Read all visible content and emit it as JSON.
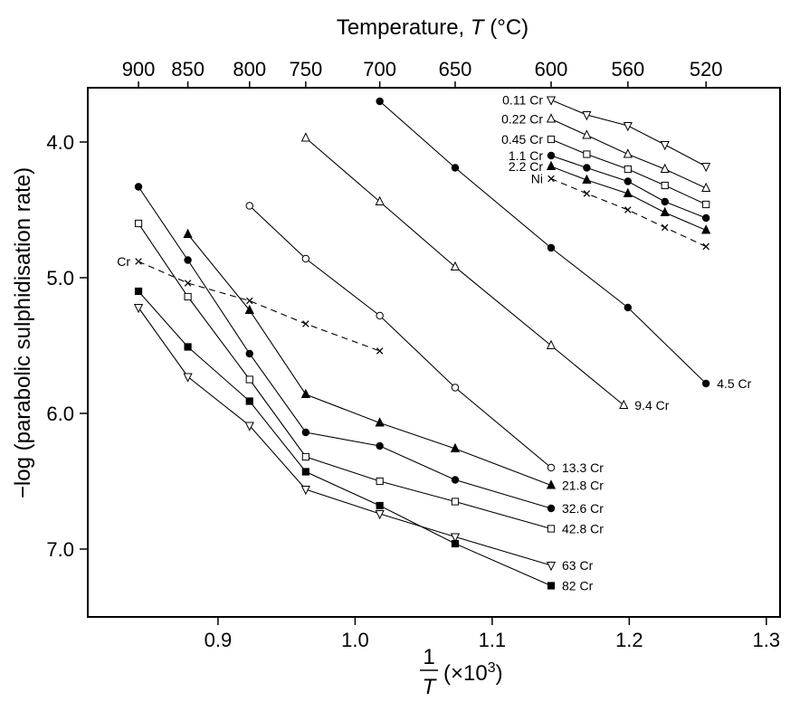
{
  "chart_data": {
    "type": "line",
    "xlabel_num": "1",
    "xlabel_den": "T",
    "xlabel_suffix": "(×10",
    "xlabel_exp": "3",
    "xlabel_close": ")",
    "ylabel": "−log (parabolic sulphidisation rate)",
    "top_axis_title_prefix": "Temperature, ",
    "top_axis_title_var": "T",
    "top_axis_title_unit": " (°C)",
    "xlim": [
      0.805,
      1.31
    ],
    "ylim": [
      3.6,
      7.5
    ],
    "y_inverted": true,
    "x_ticks": [
      {
        "value": 0.9,
        "label": "0.9"
      },
      {
        "value": 1.0,
        "label": "1.0"
      },
      {
        "value": 1.1,
        "label": "1.1"
      },
      {
        "value": 1.2,
        "label": "1.2"
      },
      {
        "value": 1.3,
        "label": "1.3"
      }
    ],
    "y_ticks": [
      {
        "value": 4.0,
        "label": "4.0"
      },
      {
        "value": 5.0,
        "label": "5.0"
      },
      {
        "value": 6.0,
        "label": "6.0"
      },
      {
        "value": 7.0,
        "label": "7.0"
      }
    ],
    "top_ticks": [
      {
        "value": 0.842,
        "label": "900"
      },
      {
        "value": 0.878,
        "label": "850"
      },
      {
        "value": 0.923,
        "label": "800"
      },
      {
        "value": 0.964,
        "label": "750"
      },
      {
        "value": 1.018,
        "label": "700"
      },
      {
        "value": 1.073,
        "label": "650"
      },
      {
        "value": 1.143,
        "label": "600"
      },
      {
        "value": 1.199,
        "label": "560"
      },
      {
        "value": 1.256,
        "label": "520"
      }
    ],
    "series": [
      {
        "name": "4.5 Cr",
        "marker": "filled-circle",
        "dashed": false,
        "label_side": "right",
        "x": [
          1.018,
          1.073,
          1.143,
          1.199,
          1.256
        ],
        "y": [
          3.7,
          4.19,
          4.78,
          5.22,
          5.78
        ]
      },
      {
        "name": "9.4 Cr",
        "marker": "open-triangle",
        "dashed": false,
        "label_side": "right",
        "x": [
          0.964,
          1.018,
          1.073,
          1.143,
          1.196
        ],
        "y": [
          3.97,
          4.44,
          4.92,
          5.5,
          5.94
        ]
      },
      {
        "name": "13.3 Cr",
        "marker": "open-circle",
        "dashed": false,
        "label_side": "right",
        "x": [
          0.923,
          0.964,
          1.018,
          1.073,
          1.143
        ],
        "y": [
          4.47,
          4.86,
          5.28,
          5.81,
          6.4
        ]
      },
      {
        "name": "21.8 Cr",
        "marker": "filled-triangle",
        "dashed": false,
        "label_side": "right",
        "x": [
          0.878,
          0.923,
          0.964,
          1.018,
          1.073,
          1.143
        ],
        "y": [
          4.68,
          5.24,
          5.86,
          6.07,
          6.26,
          6.53
        ]
      },
      {
        "name": "32.6 Cr",
        "marker": "filled-circle",
        "dashed": false,
        "label_side": "right",
        "x": [
          0.842,
          0.878,
          0.923,
          0.964,
          1.018,
          1.073,
          1.143
        ],
        "y": [
          4.33,
          4.87,
          5.56,
          6.14,
          6.24,
          6.49,
          6.7
        ]
      },
      {
        "name": "42.8 Cr",
        "marker": "open-square",
        "dashed": false,
        "label_side": "right",
        "x": [
          0.842,
          0.878,
          0.923,
          0.964,
          1.018,
          1.073,
          1.143
        ],
        "y": [
          4.6,
          5.14,
          5.75,
          6.32,
          6.5,
          6.65,
          6.85
        ]
      },
      {
        "name": "63 Cr",
        "marker": "open-triangle-down",
        "dashed": false,
        "label_side": "right",
        "x": [
          0.842,
          0.878,
          0.923,
          0.964,
          1.018,
          1.073,
          1.143
        ],
        "y": [
          5.22,
          5.73,
          6.09,
          6.56,
          6.74,
          6.91,
          7.12
        ]
      },
      {
        "name": "82 Cr",
        "marker": "filled-square",
        "dashed": false,
        "label_side": "right",
        "x": [
          0.842,
          0.878,
          0.923,
          0.964,
          1.018,
          1.073,
          1.143
        ],
        "y": [
          5.1,
          5.51,
          5.91,
          6.43,
          6.68,
          6.96,
          7.27
        ]
      },
      {
        "name": "Cr",
        "marker": "x",
        "dashed": true,
        "label_side": "left",
        "x": [
          0.842,
          0.878,
          0.923,
          0.964,
          1.018
        ],
        "y": [
          4.88,
          5.04,
          5.17,
          5.34,
          5.54
        ]
      },
      {
        "name": "0.11 Cr",
        "marker": "open-triangle-down",
        "dashed": false,
        "label_side": "left",
        "x": [
          1.143,
          1.169,
          1.199,
          1.226,
          1.256
        ],
        "y": [
          3.69,
          3.8,
          3.88,
          4.02,
          4.18
        ]
      },
      {
        "name": "0.22 Cr",
        "marker": "open-triangle",
        "dashed": false,
        "label_side": "left",
        "x": [
          1.143,
          1.169,
          1.199,
          1.226,
          1.256
        ],
        "y": [
          3.83,
          3.95,
          4.09,
          4.2,
          4.34
        ]
      },
      {
        "name": "0.45 Cr",
        "marker": "open-square",
        "dashed": false,
        "label_side": "left",
        "x": [
          1.143,
          1.169,
          1.199,
          1.226,
          1.256
        ],
        "y": [
          3.98,
          4.09,
          4.2,
          4.32,
          4.46
        ]
      },
      {
        "name": "1.1 Cr",
        "marker": "filled-circle",
        "dashed": false,
        "label_side": "left",
        "x": [
          1.143,
          1.169,
          1.199,
          1.226,
          1.256
        ],
        "y": [
          4.1,
          4.19,
          4.29,
          4.44,
          4.56
        ]
      },
      {
        "name": "2.2 Cr",
        "marker": "filled-triangle",
        "dashed": false,
        "label_side": "left",
        "x": [
          1.143,
          1.169,
          1.199,
          1.226,
          1.256
        ],
        "y": [
          4.18,
          4.28,
          4.38,
          4.52,
          4.65
        ]
      },
      {
        "name": "Ni",
        "marker": "x",
        "dashed": true,
        "label_side": "left",
        "x": [
          1.143,
          1.169,
          1.199,
          1.226,
          1.256
        ],
        "y": [
          4.27,
          4.38,
          4.5,
          4.63,
          4.77
        ]
      }
    ]
  }
}
